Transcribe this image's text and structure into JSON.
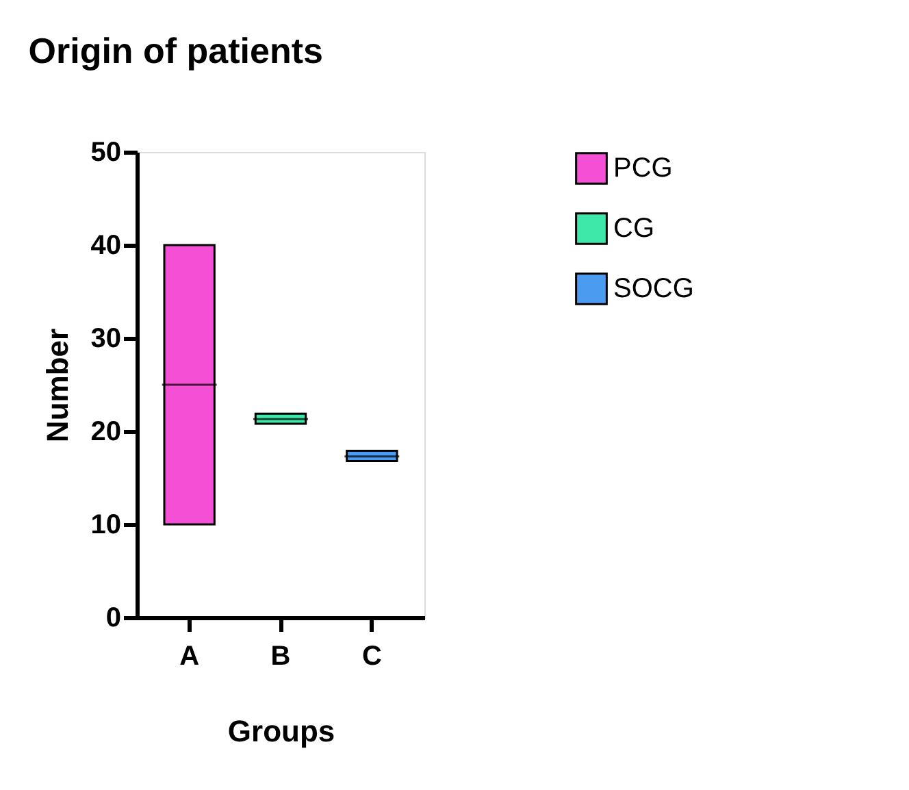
{
  "chart_data": {
    "type": "box",
    "title": "Origin of patients",
    "xlabel": "Groups",
    "ylabel": "Number",
    "categories": [
      "A",
      "B",
      "C"
    ],
    "ylim": [
      0,
      50
    ],
    "yticks": [
      0,
      10,
      20,
      30,
      40,
      50
    ],
    "grid": false,
    "legend": "top right",
    "series": [
      {
        "name": "PCG",
        "color": "#f54fd6",
        "x": [
          "A"
        ],
        "boxes": [
          {
            "low": 10,
            "q1": 10,
            "median": 25,
            "q3": 40,
            "high": 40
          }
        ]
      },
      {
        "name": "CG",
        "color": "#3ee8a8",
        "x": [
          "B"
        ],
        "boxes": [
          {
            "low": 20.8,
            "q1": 20.8,
            "median": 21.3,
            "q3": 21.9,
            "high": 21.9
          }
        ]
      },
      {
        "name": "SOCG",
        "color": "#4b9cf0",
        "x": [
          "C"
        ],
        "boxes": [
          {
            "low": 16.8,
            "q1": 16.8,
            "median": 17.3,
            "q3": 17.9,
            "high": 17.9
          }
        ]
      }
    ]
  }
}
